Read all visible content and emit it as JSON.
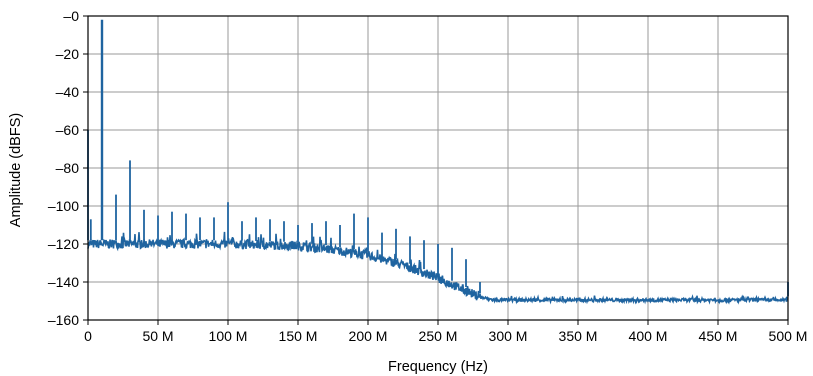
{
  "chart_data": {
    "type": "line",
    "title": "",
    "xlabel": "Frequency (Hz)",
    "ylabel": "Amplitude (dBFS)",
    "xlim": [
      0,
      500000000
    ],
    "ylim": [
      -160,
      0
    ],
    "grid": true,
    "x_ticks": [
      {
        "value": 0,
        "label": "0"
      },
      {
        "value": 50000000,
        "label": "50 M"
      },
      {
        "value": 100000000,
        "label": "100 M"
      },
      {
        "value": 150000000,
        "label": "150 M"
      },
      {
        "value": 200000000,
        "label": "200 M"
      },
      {
        "value": 250000000,
        "label": "250 M"
      },
      {
        "value": 300000000,
        "label": "300 M"
      },
      {
        "value": 350000000,
        "label": "350 M"
      },
      {
        "value": 400000000,
        "label": "400 M"
      },
      {
        "value": 450000000,
        "label": "450 M"
      },
      {
        "value": 500000000,
        "label": "500 M"
      }
    ],
    "y_ticks": [
      {
        "value": 0,
        "label": "–0"
      },
      {
        "value": -20,
        "label": "–20"
      },
      {
        "value": -40,
        "label": "–40"
      },
      {
        "value": -60,
        "label": "–60"
      },
      {
        "value": -80,
        "label": "–80"
      },
      {
        "value": -100,
        "label": "–100"
      },
      {
        "value": -120,
        "label": "–120"
      },
      {
        "value": -140,
        "label": "–140"
      },
      {
        "value": -160,
        "label": "–160"
      }
    ],
    "series": [
      {
        "color": "#1f64a0",
        "noise_floor": {
          "x": [
            0,
            50000000,
            100000000,
            150000000,
            175000000,
            200000000,
            225000000,
            250000000,
            265000000,
            280000000,
            290000000,
            300000000,
            500000000
          ],
          "y": [
            -120,
            -120,
            -120,
            -121,
            -123,
            -126,
            -131,
            -138,
            -143,
            -148,
            -149.5,
            -149.5,
            -149.5
          ]
        },
        "peaks": [
          {
            "x": 0,
            "y": -60
          },
          {
            "x": 2000000,
            "y": -107
          },
          {
            "x": 10000000,
            "y": -2
          },
          {
            "x": 20000000,
            "y": -94
          },
          {
            "x": 30000000,
            "y": -76
          },
          {
            "x": 40000000,
            "y": -102
          },
          {
            "x": 50000000,
            "y": -105
          },
          {
            "x": 60000000,
            "y": -103
          },
          {
            "x": 70000000,
            "y": -104
          },
          {
            "x": 80000000,
            "y": -106
          },
          {
            "x": 90000000,
            "y": -106
          },
          {
            "x": 100000000,
            "y": -98
          },
          {
            "x": 110000000,
            "y": -108
          },
          {
            "x": 120000000,
            "y": -106
          },
          {
            "x": 130000000,
            "y": -107
          },
          {
            "x": 140000000,
            "y": -108
          },
          {
            "x": 150000000,
            "y": -110
          },
          {
            "x": 160000000,
            "y": -109
          },
          {
            "x": 170000000,
            "y": -108
          },
          {
            "x": 180000000,
            "y": -110
          },
          {
            "x": 190000000,
            "y": -104
          },
          {
            "x": 200000000,
            "y": -106
          },
          {
            "x": 210000000,
            "y": -114
          },
          {
            "x": 220000000,
            "y": -112
          },
          {
            "x": 230000000,
            "y": -116
          },
          {
            "x": 240000000,
            "y": -118
          },
          {
            "x": 250000000,
            "y": -120
          },
          {
            "x": 260000000,
            "y": -122
          },
          {
            "x": 270000000,
            "y": -128
          },
          {
            "x": 280000000,
            "y": -140
          },
          {
            "x": 500000000,
            "y": -140
          }
        ]
      }
    ]
  }
}
